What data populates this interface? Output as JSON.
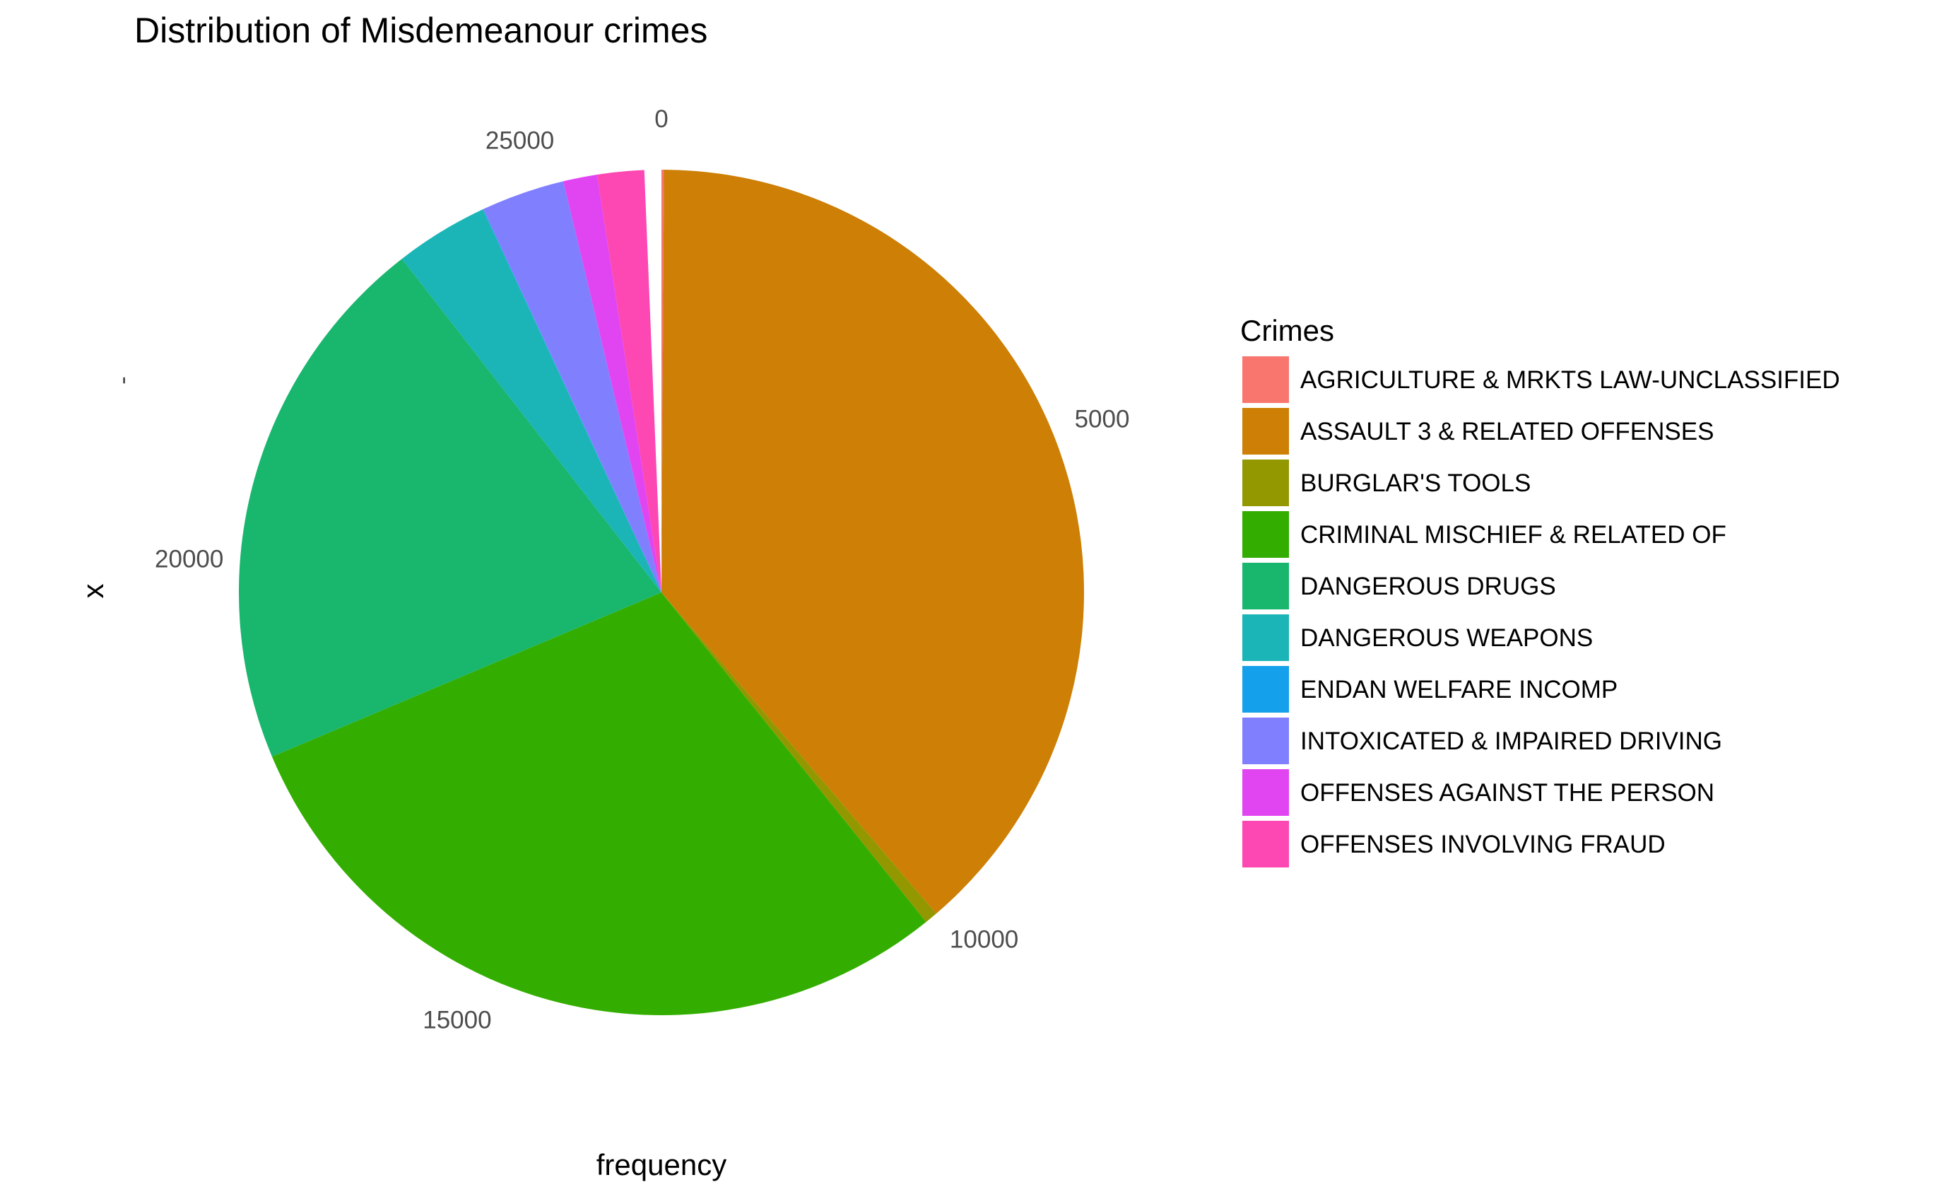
{
  "chart_data": {
    "type": "pie",
    "title": "Distribution of Misdemeanour crimes",
    "xlabel": "frequency",
    "ylabel": "x",
    "y_tick_label": "-",
    "theta_ticks": [
      0,
      5000,
      10000,
      15000,
      20000,
      25000
    ],
    "theta_range": [
      0,
      26270
    ],
    "legend": {
      "title": "Crimes",
      "position": "right"
    },
    "grid": false,
    "slices": [
      {
        "label": "AGRICULTURE & MRKTS LAW-UNCLASSIFIED",
        "value": 25,
        "color": "#F8766D"
      },
      {
        "label": "ASSAULT 3 & RELATED OFFENSES",
        "value": 10150,
        "color": "#CD7F06"
      },
      {
        "label": "BURGLAR'S TOOLS",
        "value": 130,
        "color": "#939800"
      },
      {
        "label": "CRIMINAL MISCHIEF & RELATED OF",
        "value": 7730,
        "color": "#33AE00"
      },
      {
        "label": "DANGEROUS DRUGS",
        "value": 5470,
        "color": "#19B66E"
      },
      {
        "label": "DANGEROUS WEAPONS",
        "value": 940,
        "color": "#1BB5B7"
      },
      {
        "label": "ENDAN WELFARE INCOMP",
        "value": 5,
        "color": "#14A0EA"
      },
      {
        "label": "INTOXICATED & IMPAIRED DRIVING",
        "value": 840,
        "color": "#8080FF"
      },
      {
        "label": "OFFENSES AGAINST THE PERSON",
        "value": 340,
        "color": "#E145F1"
      },
      {
        "label": "OFFENSES INVOLVING FRAUD",
        "value": 470,
        "color": "#FD47B2"
      }
    ]
  }
}
